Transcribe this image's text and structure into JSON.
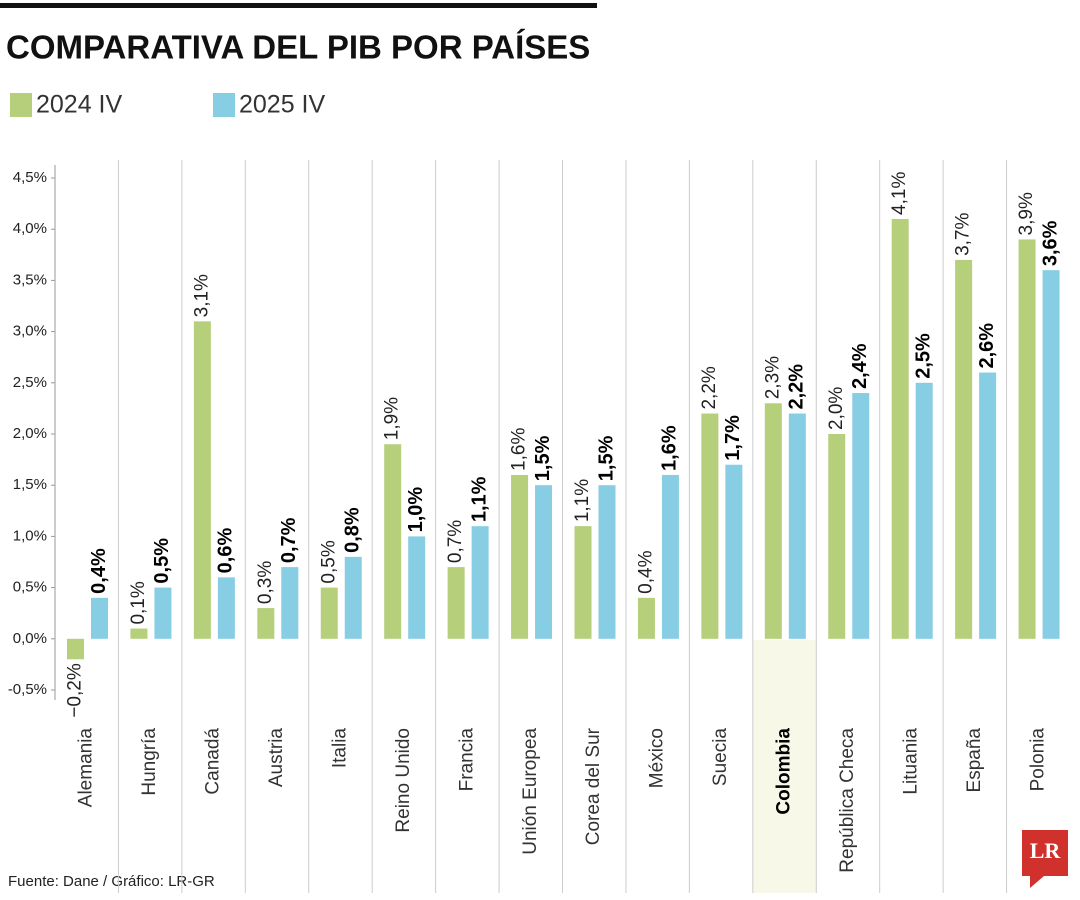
{
  "chart_data": {
    "type": "bar",
    "title": "COMPARATIVA DEL PIB POR PAÍSES",
    "categories": [
      "Alemania",
      "Hungría",
      "Canadá",
      "Austria",
      "Italia",
      "Reino Unido",
      "Francia",
      "Unión Europea",
      "Corea del Sur",
      "México",
      "Suecia",
      "Colombia",
      "República Checa",
      "Lituania",
      "España",
      "Polonia"
    ],
    "series": [
      {
        "name": "2024 IV",
        "color": "#b5cf7b",
        "values": [
          -0.2,
          0.1,
          3.1,
          0.3,
          0.5,
          1.9,
          0.7,
          1.6,
          1.1,
          0.4,
          2.2,
          2.3,
          2.0,
          4.1,
          3.7,
          3.9
        ],
        "value_labels": [
          "−0,2%",
          "0,1%",
          "3,1%",
          "0,3%",
          "0,5%",
          "1,9%",
          "0,7%",
          "1,6%",
          "1,1%",
          "0,4%",
          "2,2%",
          "2,3%",
          "2,0%",
          "4,1%",
          "3,7%",
          "3,9%"
        ]
      },
      {
        "name": "2025 IV",
        "color": "#87cde3",
        "values": [
          0.4,
          0.5,
          0.6,
          0.7,
          0.8,
          1.0,
          1.1,
          1.5,
          1.5,
          1.6,
          1.7,
          2.2,
          2.4,
          2.5,
          2.6,
          3.6
        ],
        "value_labels": [
          "0,4%",
          "0,5%",
          "0,6%",
          "0,7%",
          "0,8%",
          "1,0%",
          "1,1%",
          "1,5%",
          "1,5%",
          "1,6%",
          "1,7%",
          "2,2%",
          "2,4%",
          "2,5%",
          "2,6%",
          "3,6%"
        ]
      }
    ],
    "ylim": [
      -0.5,
      4.5
    ],
    "yticks": [
      {
        "value": -0.5,
        "label": "-0,5%"
      },
      {
        "value": 0,
        "label": "0,0%"
      },
      {
        "value": 0.5,
        "label": "0,5%"
      },
      {
        "value": 1,
        "label": "1,0%"
      },
      {
        "value": 1.5,
        "label": "1,5%"
      },
      {
        "value": 2,
        "label": "2,0%"
      },
      {
        "value": 2.5,
        "label": "2,5%"
      },
      {
        "value": 3,
        "label": "3,0%"
      },
      {
        "value": 3.5,
        "label": "3,5%"
      },
      {
        "value": 4,
        "label": "4,0%"
      },
      {
        "value": 4.5,
        "label": "4,5%"
      }
    ],
    "grid": false,
    "source": "Fuente: Dane / Gráfico: LR-GR",
    "logo": "LR"
  }
}
